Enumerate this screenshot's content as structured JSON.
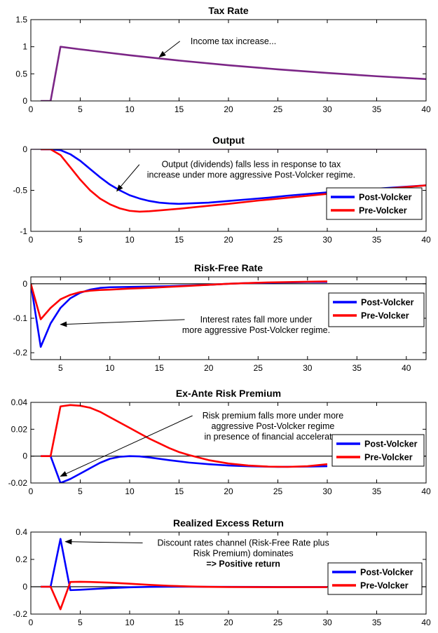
{
  "chart_data": [
    {
      "type": "line",
      "title": "Tax Rate",
      "xlim": [
        0,
        40
      ],
      "ylim": [
        0,
        1.5
      ],
      "xticks": [
        0,
        5,
        10,
        15,
        20,
        25,
        30,
        35,
        40
      ],
      "yticks": [
        0,
        0.5,
        1,
        1.5
      ],
      "zero_line": false,
      "series": [
        {
          "color": "#7B2586",
          "points": [
            [
              1,
              0
            ],
            [
              2,
              0
            ],
            [
              3,
              1.0
            ],
            [
              5,
              0.952
            ],
            [
              10,
              0.843
            ],
            [
              15,
              0.745
            ],
            [
              20,
              0.659
            ],
            [
              25,
              0.583
            ],
            [
              30,
              0.516
            ],
            [
              35,
              0.456
            ],
            [
              40,
              0.403
            ]
          ]
        }
      ],
      "annotations": [
        {
          "lines": [
            "Income tax increase..."
          ],
          "bold": [
            false
          ],
          "arrow_to": [
            13,
            0.81
          ],
          "text_at": [
            20.5,
            1.05
          ]
        }
      ],
      "legend": null
    },
    {
      "type": "line",
      "title": "Output",
      "xlim": [
        0,
        40
      ],
      "ylim": [
        -1,
        0
      ],
      "xticks": [
        0,
        5,
        10,
        15,
        20,
        25,
        30,
        35,
        40
      ],
      "yticks": [
        -1,
        -0.5,
        0
      ],
      "zero_line": true,
      "zero_color": "#7B2586",
      "series": [
        {
          "name": "Post-Volcker",
          "color": "#0000FF",
          "points": [
            [
              1,
              0
            ],
            [
              2,
              0
            ],
            [
              3,
              -0.01
            ],
            [
              4,
              -0.06
            ],
            [
              5,
              -0.14
            ],
            [
              6,
              -0.24
            ],
            [
              7,
              -0.34
            ],
            [
              8,
              -0.43
            ],
            [
              9,
              -0.5
            ],
            [
              10,
              -0.56
            ],
            [
              11,
              -0.6
            ],
            [
              12,
              -0.63
            ],
            [
              13,
              -0.65
            ],
            [
              14,
              -0.66
            ],
            [
              15,
              -0.665
            ],
            [
              16,
              -0.66
            ],
            [
              18,
              -0.65
            ],
            [
              20,
              -0.63
            ],
            [
              22,
              -0.61
            ],
            [
              24,
              -0.59
            ],
            [
              26,
              -0.565
            ],
            [
              28,
              -0.545
            ],
            [
              30,
              -0.525
            ],
            [
              32,
              -0.505
            ],
            [
              35,
              -0.48
            ],
            [
              40,
              -0.44
            ]
          ]
        },
        {
          "name": "Pre-Volcker",
          "color": "#FF0000",
          "points": [
            [
              1,
              0
            ],
            [
              2,
              0
            ],
            [
              3,
              -0.07
            ],
            [
              4,
              -0.22
            ],
            [
              5,
              -0.37
            ],
            [
              6,
              -0.5
            ],
            [
              7,
              -0.6
            ],
            [
              8,
              -0.67
            ],
            [
              9,
              -0.72
            ],
            [
              10,
              -0.75
            ],
            [
              11,
              -0.76
            ],
            [
              12,
              -0.755
            ],
            [
              13,
              -0.745
            ],
            [
              15,
              -0.725
            ],
            [
              17,
              -0.7
            ],
            [
              20,
              -0.665
            ],
            [
              23,
              -0.625
            ],
            [
              26,
              -0.59
            ],
            [
              29,
              -0.555
            ],
            [
              32,
              -0.52
            ],
            [
              35,
              -0.49
            ],
            [
              40,
              -0.44
            ]
          ]
        }
      ],
      "annotations": [
        {
          "lines": [
            "Output (dividends) falls less in response to tax",
            "increase under more aggressive Post-Volcker regime."
          ],
          "bold": [
            false,
            false
          ],
          "arrow_to": [
            8.7,
            -0.51
          ],
          "text_at": [
            22.3,
            -0.22
          ]
        }
      ],
      "legend": {
        "position": "lower-right"
      }
    },
    {
      "type": "line",
      "title": "Risk-Free Rate",
      "xlim": [
        2,
        42
      ],
      "ylim": [
        -0.22,
        0.02
      ],
      "xticks": [
        5,
        10,
        15,
        20,
        25,
        30,
        35,
        40
      ],
      "yticks": [
        -0.2,
        -0.1,
        0
      ],
      "zero_line": true,
      "zero_color": "#000000",
      "series": [
        {
          "name": "Post-Volcker",
          "color": "#0000FF",
          "points": [
            [
              2,
              0
            ],
            [
              3,
              -0.183
            ],
            [
              4,
              -0.115
            ],
            [
              5,
              -0.07
            ],
            [
              6,
              -0.042
            ],
            [
              7,
              -0.026
            ],
            [
              8,
              -0.017
            ],
            [
              9,
              -0.012
            ],
            [
              10,
              -0.01
            ],
            [
              12,
              -0.009
            ],
            [
              14,
              -0.008
            ],
            [
              16,
              -0.007
            ],
            [
              18,
              -0.005
            ],
            [
              20,
              -0.003
            ],
            [
              22,
              0
            ],
            [
              24,
              0.002
            ],
            [
              26,
              0.003
            ],
            [
              28,
              0.004
            ],
            [
              30,
              0.005
            ],
            [
              32,
              0.005
            ]
          ]
        },
        {
          "name": "Pre-Volcker",
          "color": "#FF0000",
          "points": [
            [
              2,
              0
            ],
            [
              3,
              -0.103
            ],
            [
              4,
              -0.07
            ],
            [
              5,
              -0.045
            ],
            [
              6,
              -0.032
            ],
            [
              7,
              -0.024
            ],
            [
              8,
              -0.02
            ],
            [
              9,
              -0.018
            ],
            [
              10,
              -0.017
            ],
            [
              12,
              -0.014
            ],
            [
              14,
              -0.012
            ],
            [
              16,
              -0.009
            ],
            [
              18,
              -0.006
            ],
            [
              20,
              -0.003
            ],
            [
              22,
              0
            ],
            [
              24,
              0.002
            ],
            [
              26,
              0.004
            ],
            [
              28,
              0.005
            ],
            [
              30,
              0.006
            ],
            [
              32,
              0.007
            ]
          ]
        }
      ],
      "annotations": [
        {
          "lines": [
            "Interest rates fall more under",
            "more aggressive Post-Volcker regime."
          ],
          "bold": [
            false,
            false
          ],
          "arrow_to": [
            5,
            -0.118
          ],
          "text_at": [
            24.8,
            -0.112
          ]
        }
      ],
      "legend": {
        "position": "upper-right"
      }
    },
    {
      "type": "line",
      "title": "Ex-Ante Risk Premium",
      "xlim": [
        0,
        40
      ],
      "ylim": [
        -0.02,
        0.04
      ],
      "xticks": [
        0,
        5,
        10,
        15,
        20,
        25,
        30,
        35,
        40
      ],
      "yticks": [
        -0.02,
        0,
        0.02,
        0.04
      ],
      "zero_line": true,
      "zero_color": "#000000",
      "series": [
        {
          "name": "Post-Volcker",
          "color": "#0000FF",
          "points": [
            [
              1,
              0
            ],
            [
              2,
              0
            ],
            [
              3,
              -0.02
            ],
            [
              4,
              -0.017
            ],
            [
              5,
              -0.013
            ],
            [
              6,
              -0.009
            ],
            [
              7,
              -0.005
            ],
            [
              8,
              -0.002
            ],
            [
              9,
              -0.0005
            ],
            [
              10,
              0
            ],
            [
              11,
              -0.0002
            ],
            [
              12,
              -0.001
            ],
            [
              14,
              -0.003
            ],
            [
              16,
              -0.0048
            ],
            [
              18,
              -0.006
            ],
            [
              20,
              -0.007
            ],
            [
              22,
              -0.0075
            ],
            [
              25,
              -0.008
            ],
            [
              28,
              -0.0078
            ],
            [
              30,
              -0.0075
            ]
          ]
        },
        {
          "name": "Pre-Volcker",
          "color": "#FF0000",
          "points": [
            [
              1,
              0
            ],
            [
              2,
              0
            ],
            [
              3,
              0.037
            ],
            [
              4,
              0.038
            ],
            [
              5,
              0.0375
            ],
            [
              6,
              0.036
            ],
            [
              7,
              0.033
            ],
            [
              8,
              0.029
            ],
            [
              9,
              0.025
            ],
            [
              10,
              0.021
            ],
            [
              11,
              0.017
            ],
            [
              12,
              0.013
            ],
            [
              13,
              0.0095
            ],
            [
              14,
              0.006
            ],
            [
              15,
              0.003
            ],
            [
              16,
              0.0008
            ],
            [
              18,
              -0.003
            ],
            [
              20,
              -0.0055
            ],
            [
              22,
              -0.007
            ],
            [
              24,
              -0.0078
            ],
            [
              26,
              -0.008
            ],
            [
              28,
              -0.0075
            ],
            [
              30,
              -0.006
            ]
          ]
        }
      ],
      "annotations": [
        {
          "lines": [
            "Risk premium falls more under more",
            "aggressive Post-Volcker regime",
            "in presence of financial accelerator."
          ],
          "bold": [
            false,
            false,
            false
          ],
          "arrow_to": [
            3,
            -0.015
          ],
          "text_at": [
            24.5,
            0.028
          ]
        }
      ],
      "legend": {
        "position": "lower-right"
      }
    },
    {
      "type": "line",
      "title": "Realized Excess Return",
      "xlim": [
        0,
        40
      ],
      "ylim": [
        -0.2,
        0.4
      ],
      "xticks": [
        0,
        5,
        10,
        15,
        20,
        25,
        30,
        35,
        40
      ],
      "yticks": [
        -0.2,
        0,
        0.2,
        0.4
      ],
      "zero_line": true,
      "zero_color": "#000000",
      "series": [
        {
          "name": "Post-Volcker",
          "color": "#0000FF",
          "points": [
            [
              1,
              0
            ],
            [
              2,
              0
            ],
            [
              3,
              0.35
            ],
            [
              4,
              -0.025
            ],
            [
              5,
              -0.022
            ],
            [
              6,
              -0.018
            ],
            [
              8,
              -0.01
            ],
            [
              10,
              -0.004
            ],
            [
              12,
              -0.001
            ],
            [
              14,
              0
            ],
            [
              16,
              0
            ],
            [
              20,
              -0.001
            ],
            [
              25,
              -0.002
            ],
            [
              30,
              -0.002
            ]
          ]
        },
        {
          "name": "Pre-Volcker",
          "color": "#FF0000",
          "points": [
            [
              1,
              0
            ],
            [
              2,
              0
            ],
            [
              3,
              -0.165
            ],
            [
              4,
              0.035
            ],
            [
              5,
              0.036
            ],
            [
              6,
              0.035
            ],
            [
              8,
              0.03
            ],
            [
              10,
              0.022
            ],
            [
              12,
              0.014
            ],
            [
              14,
              0.007
            ],
            [
              16,
              0.002
            ],
            [
              18,
              -0.001
            ],
            [
              20,
              -0.002
            ],
            [
              25,
              -0.003
            ],
            [
              30,
              -0.003
            ]
          ]
        }
      ],
      "annotations": [
        {
          "lines": [
            "Discount rates channel (Risk-Free Rate plus",
            "Risk Premium) dominates",
            "=> Positive return"
          ],
          "bold": [
            false,
            false,
            true
          ],
          "arrow_to": [
            3.5,
            0.33
          ],
          "text_at": [
            21.5,
            0.3
          ]
        }
      ],
      "legend": {
        "position": "lower-right"
      }
    }
  ]
}
